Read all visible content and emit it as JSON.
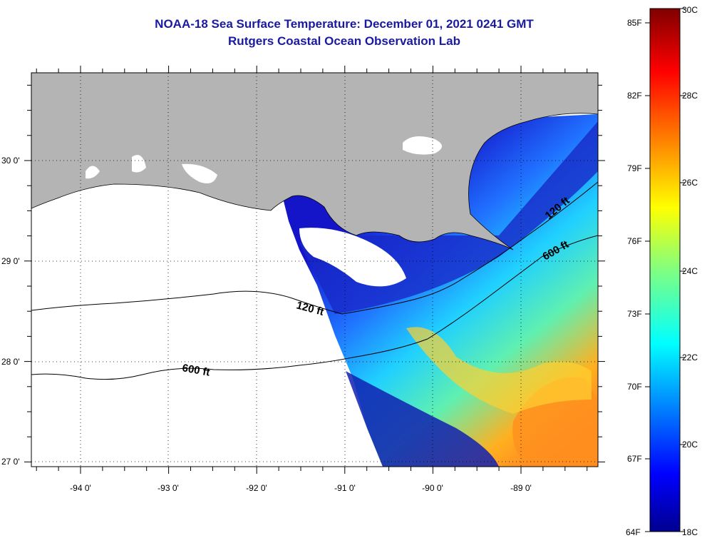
{
  "title": {
    "line1": "NOAA-18 Sea Surface Temperature:  December 01, 2021 0241 GMT",
    "line2": "Rutgers Coastal Ocean Observation Lab"
  },
  "map": {
    "lon_ticks": [
      "-94 0'",
      "-93 0'",
      "-92 0'",
      "-91 0'",
      "-90 0'",
      "-89 0'"
    ],
    "lat_ticks": [
      "30 0'",
      "29 0'",
      "28 0'",
      "27 0'"
    ],
    "extent": {
      "lon_min": -94.5,
      "lon_max": -88.05,
      "lat_min": 26.95,
      "lat_max": 30.85
    },
    "contours": [
      {
        "label": "120 ft"
      },
      {
        "label": "600 ft"
      },
      {
        "label": "120 ft"
      },
      {
        "label": "600 ft"
      }
    ],
    "colors": {
      "land": "#b4b4b4",
      "cloud": "#ffffff",
      "no_data": "#ffffff"
    }
  },
  "colorbar": {
    "fahrenheit_labels": [
      "85F",
      "82F",
      "79F",
      "76F",
      "73F",
      "70F",
      "67F",
      "64F"
    ],
    "celsius_labels": [
      "30C",
      "28C",
      "26C",
      "24C",
      "22C",
      "20C",
      "18C"
    ],
    "range_c": [
      18,
      30
    ],
    "colormap": "jet",
    "stops": [
      "#00008f",
      "#0000ff",
      "#0080ff",
      "#00ffff",
      "#80ff80",
      "#ffff00",
      "#ff8000",
      "#ff0000",
      "#800000"
    ]
  }
}
